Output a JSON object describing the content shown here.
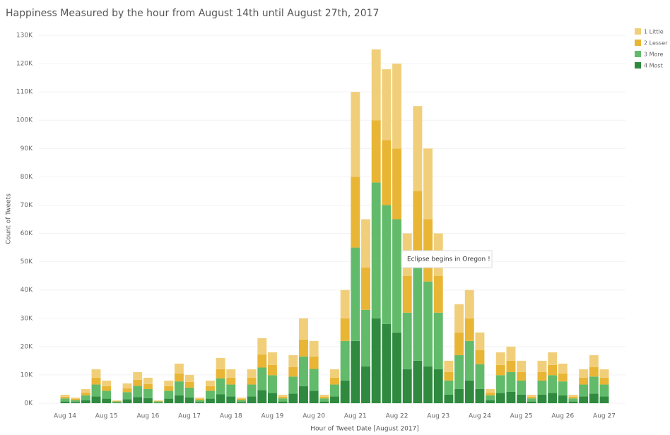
{
  "chart_data": {
    "type": "stacked_bar",
    "title": "Happiness Measured by the hour from August 14th until August 27th, 2017",
    "x_label": "Hour of Tweet Date [August 2017]",
    "y_label": "Count of Tweets",
    "annotation": "Eclipse begins in Oregon !",
    "categories": [
      "Aug 14",
      null,
      null,
      null,
      "Aug 15",
      null,
      null,
      null,
      "Aug 16",
      null,
      null,
      null,
      "Aug 17",
      null,
      null,
      null,
      "Aug 18",
      null,
      null,
      null,
      "Aug 19",
      null,
      null,
      null,
      "Aug 20",
      null,
      null,
      null,
      "Aug 21",
      null,
      null,
      null,
      "Aug 22",
      null,
      null,
      null,
      "Aug 23",
      null,
      null,
      null,
      "Aug 24",
      null,
      null,
      null,
      "Aug 25",
      null,
      null,
      null,
      "Aug 26",
      null,
      null,
      null,
      "Aug 27"
    ],
    "series": [
      {
        "name": "4 Most",
        "color": "#2f8a3f",
        "values": [
          600,
          400,
          1000,
          2400,
          1600,
          200,
          1400,
          2200,
          1800,
          200,
          1600,
          2800,
          2000,
          400,
          1600,
          3200,
          2400,
          400,
          2400,
          4600,
          3600,
          600,
          3400,
          6000,
          4400,
          600,
          2400,
          8000,
          22000,
          13000,
          30000,
          28000,
          25000,
          12000,
          15000,
          13000,
          12000,
          3000,
          5000,
          8000,
          5000,
          1000,
          3600,
          4000,
          3000,
          600,
          3000,
          3600,
          2800,
          600,
          2400,
          3400,
          2400
        ]
      },
      {
        "name": "3 More",
        "color": "#62bb6a",
        "values": [
          1100,
          700,
          1800,
          4200,
          2800,
          400,
          2500,
          3900,
          3200,
          400,
          2800,
          4900,
          3500,
          700,
          2800,
          5600,
          4200,
          700,
          4200,
          8000,
          6300,
          1100,
          6000,
          10500,
          7700,
          1100,
          4200,
          14000,
          33000,
          20000,
          48000,
          42000,
          40000,
          20000,
          35000,
          30000,
          20000,
          5000,
          12000,
          14000,
          8800,
          1800,
          6300,
          7000,
          5000,
          1100,
          5000,
          6300,
          4900,
          1100,
          4200,
          6000,
          4200
        ]
      },
      {
        "name": "2 Lesser",
        "color": "#e9b535",
        "values": [
          600,
          400,
          1000,
          2400,
          1600,
          200,
          1400,
          2200,
          1800,
          200,
          1600,
          2800,
          2000,
          400,
          1600,
          3200,
          2400,
          400,
          2400,
          4600,
          3600,
          600,
          3400,
          6000,
          4400,
          600,
          2400,
          8000,
          25000,
          15000,
          22000,
          23000,
          25000,
          13000,
          25000,
          22000,
          13000,
          3000,
          8000,
          8000,
          5000,
          1000,
          3600,
          4000,
          3000,
          600,
          3000,
          3600,
          2800,
          600,
          2400,
          3400,
          2400
        ]
      },
      {
        "name": "1 Little",
        "color": "#f1cf7a",
        "values": [
          700,
          500,
          1200,
          3000,
          2000,
          200,
          1700,
          2700,
          2200,
          200,
          2000,
          3500,
          2500,
          500,
          2000,
          4000,
          3000,
          500,
          3000,
          5800,
          4500,
          700,
          4200,
          7500,
          5500,
          700,
          3000,
          10000,
          30000,
          17000,
          25000,
          25000,
          30000,
          15000,
          30000,
          25000,
          15000,
          4000,
          10000,
          10000,
          6200,
          1200,
          4500,
          5000,
          4000,
          700,
          4000,
          4500,
          3500,
          700,
          3000,
          4200,
          3000
        ]
      }
    ],
    "legend_order": [
      3,
      2,
      1,
      0
    ],
    "ylim": [
      0,
      130000
    ],
    "yticks": [
      {
        "value": 0,
        "label": "0K"
      },
      {
        "value": 10000,
        "label": "10K"
      },
      {
        "value": 20000,
        "label": "20K"
      },
      {
        "value": 30000,
        "label": "30K"
      },
      {
        "value": 40000,
        "label": "40K"
      },
      {
        "value": 50000,
        "label": "50K"
      },
      {
        "value": 60000,
        "label": "60K"
      },
      {
        "value": 70000,
        "label": "70K"
      },
      {
        "value": 80000,
        "label": "80K"
      },
      {
        "value": 90000,
        "label": "90K"
      },
      {
        "value": 100000,
        "label": "100K"
      },
      {
        "value": 110000,
        "label": "110K"
      },
      {
        "value": 120000,
        "label": "120K"
      },
      {
        "value": 130000,
        "label": "130K"
      }
    ],
    "grid": true
  }
}
